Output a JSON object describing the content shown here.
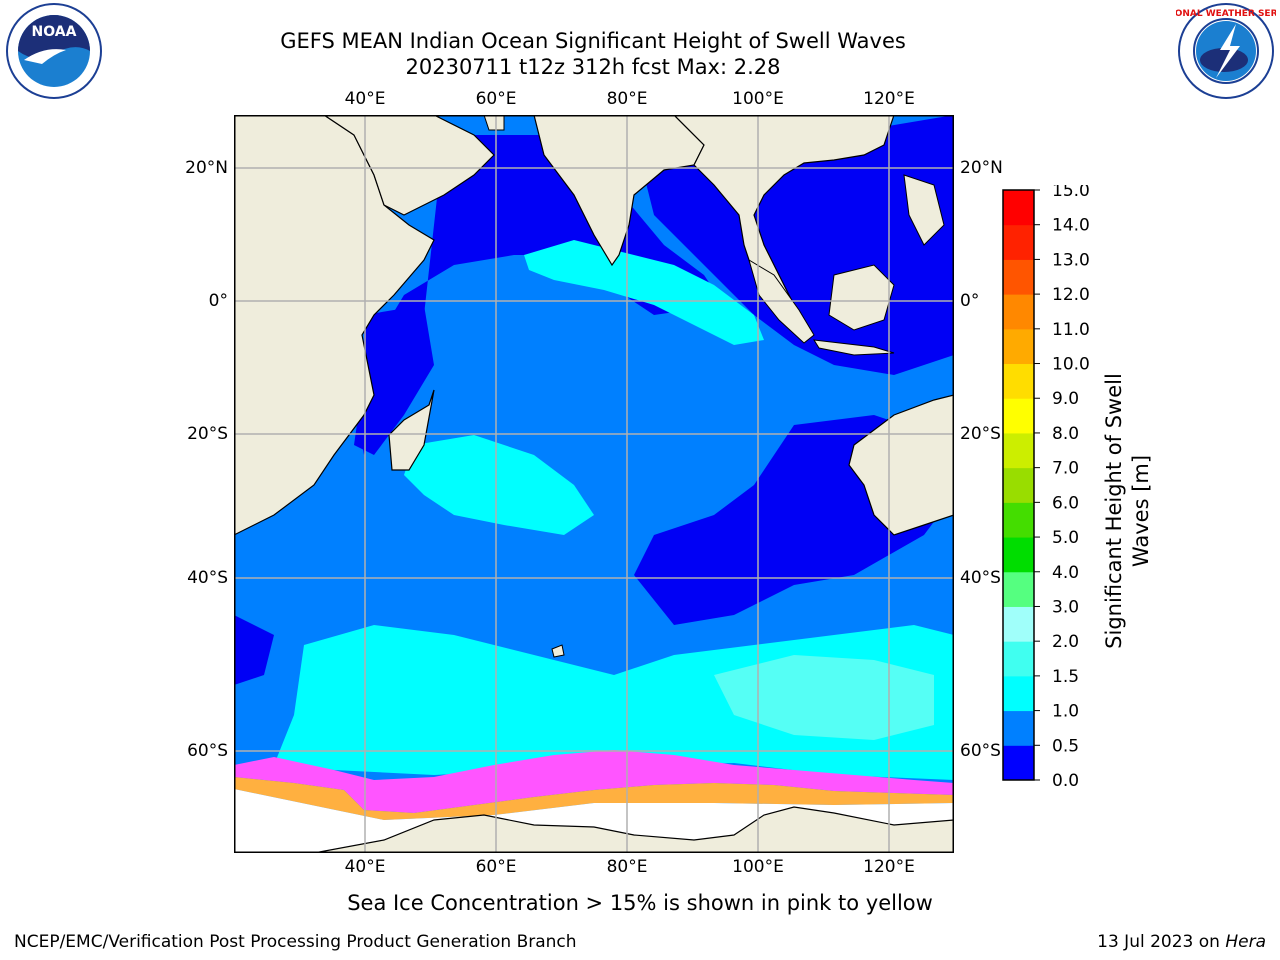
{
  "header": {
    "title_line1": "GEFS MEAN Indian Ocean Significant Height of Swell Waves",
    "title_line2": "20230711 t12z 312h fcst   Max: 2.28"
  },
  "map": {
    "lon_labels": [
      "40°E",
      "60°E",
      "80°E",
      "100°E",
      "120°E"
    ],
    "lat_labels": [
      "20°N",
      "0°",
      "20°S",
      "40°S",
      "60°S"
    ],
    "lon_range": [
      20,
      130
    ],
    "lat_range": [
      -72,
      28
    ],
    "lon_ticks": [
      40,
      60,
      80,
      100,
      120
    ],
    "lat_ticks": [
      20,
      0,
      -20,
      -40,
      -60
    ],
    "gridlines": true,
    "colors": {
      "land": "#efeddc",
      "ocean_low": "#0000f5",
      "ocean_mid": "#0080ff",
      "swell_high": "#00ffff",
      "swell_peak": "#55fff5",
      "sea_ice": "#ff55ff",
      "sea_ice_edge": "#ffb040"
    }
  },
  "colorbar": {
    "title": "Significant Height of Swell Waves [m]",
    "ticks": [
      "0.0",
      "0.5",
      "1.0",
      "1.5",
      "2.0",
      "3.0",
      "4.0",
      "5.0",
      "6.0",
      "7.0",
      "8.0",
      "9.0",
      "10.0",
      "11.0",
      "12.0",
      "13.0",
      "14.0",
      "15.0"
    ],
    "colors": [
      "#0000ff",
      "#0080ff",
      "#00ffff",
      "#40fff0",
      "#a0fffa",
      "#55ff80",
      "#00dd00",
      "#44dd00",
      "#99dd00",
      "#ccee00",
      "#ffff00",
      "#ffdd00",
      "#ffaa00",
      "#ff8800",
      "#ff5500",
      "#ff2200",
      "#ff0000"
    ]
  },
  "caption": "Sea Ice Concentration > 15% is shown in pink to yellow",
  "footer": {
    "left": "NCEP/EMC/Verification Post Processing Product Generation Branch",
    "right_date": "13 Jul 2023 on ",
    "right_host": "Hera"
  },
  "logos": {
    "left": "NOAA",
    "right": "NATIONAL WEATHER SERVICE"
  }
}
